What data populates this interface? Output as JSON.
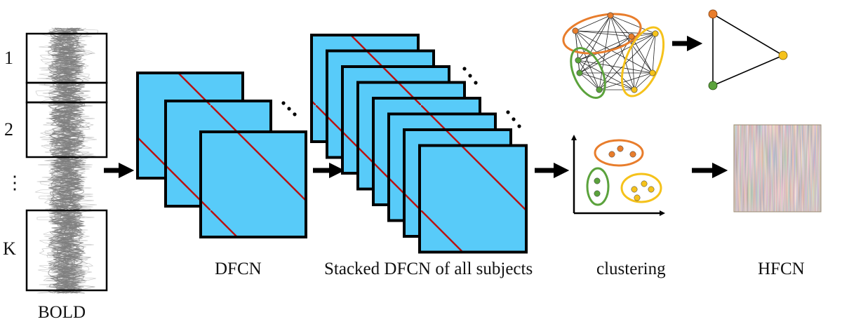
{
  "labels": {
    "bold": "BOLD",
    "dfcn": "DFCN",
    "stacked": "Stacked DFCN of all subjects",
    "clustering": "clustering",
    "hfcn": "HFCN"
  },
  "windows": [
    "1",
    "2",
    "⋮",
    "K"
  ],
  "colors": {
    "cluster_orange": "#e87d2c",
    "cluster_yellow": "#f5c21b",
    "cluster_green": "#5ba23c",
    "signal": "#7f7f7f",
    "arrow": "#000000"
  },
  "icons": [
    "right-arrow-icon",
    "ellipsis-icon"
  ]
}
